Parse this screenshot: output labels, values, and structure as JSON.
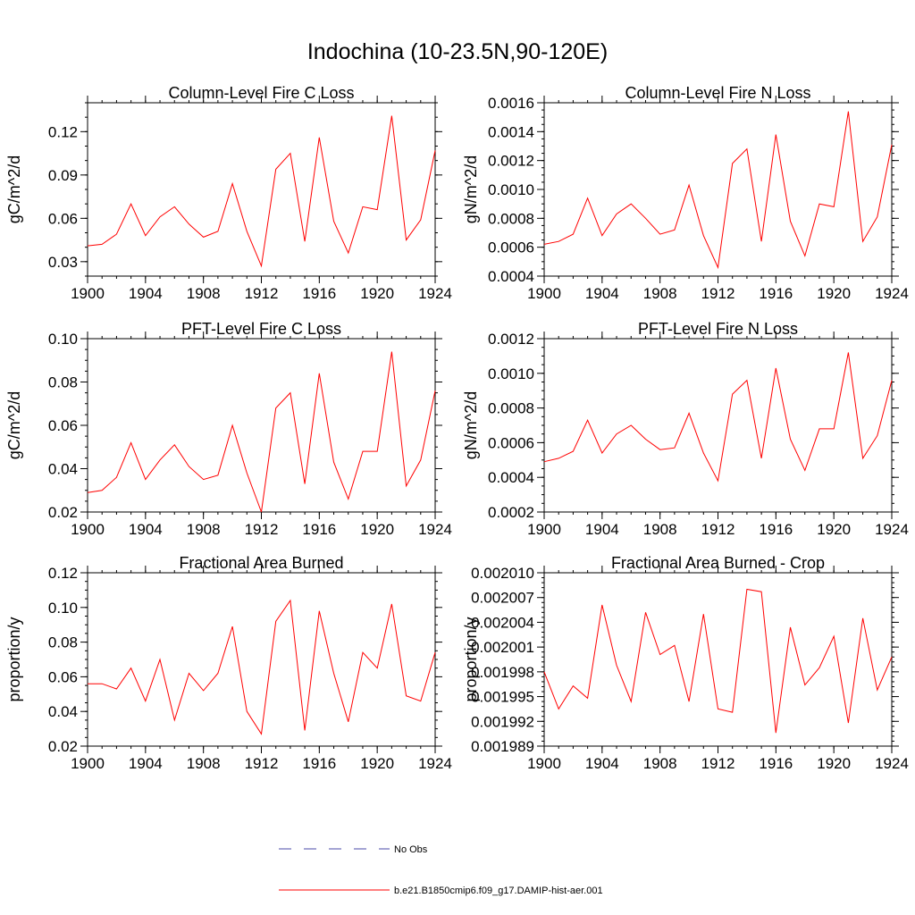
{
  "figure": {
    "title": "Indochina (10-23.5N,90-120E)"
  },
  "legend": {
    "entries": [
      {
        "label": "No Obs",
        "color": "#4a4aa8",
        "style": "dashed"
      },
      {
        "label": "b.e21.B1850cmip6.f09_g17.DAMIP-hist-aer.001",
        "color": "#ff0000",
        "style": "solid"
      }
    ]
  },
  "chart_data": [
    {
      "type": "line",
      "title": "Column-Level Fire C Loss",
      "ylabel": "gC/m^2/d",
      "xlim": [
        1900,
        1924
      ],
      "ylim": [
        0.02,
        0.14
      ],
      "xticks": [
        "1900",
        "1904",
        "1908",
        "1912",
        "1916",
        "1920",
        "1924"
      ],
      "yticks": [
        "0.03",
        "0.06",
        "0.09",
        "0.12"
      ],
      "ytick_values": [
        0.03,
        0.06,
        0.09,
        0.12
      ],
      "ymin_minor": 0.02,
      "ymax_minor": 0.14,
      "yminor_step": 0.01,
      "x": [
        1900,
        1901,
        1902,
        1903,
        1904,
        1905,
        1906,
        1907,
        1908,
        1909,
        1910,
        1911,
        1912,
        1913,
        1914,
        1915,
        1916,
        1917,
        1918,
        1919,
        1920,
        1921,
        1922,
        1923,
        1924
      ],
      "series": [
        {
          "color": "#ff0000",
          "values": [
            0.041,
            0.042,
            0.049,
            0.07,
            0.048,
            0.061,
            0.068,
            0.056,
            0.047,
            0.051,
            0.084,
            0.051,
            0.027,
            0.094,
            0.105,
            0.044,
            0.116,
            0.058,
            0.036,
            0.068,
            0.066,
            0.131,
            0.045,
            0.059,
            0.107
          ]
        }
      ]
    },
    {
      "type": "line",
      "title": "Column-Level Fire N Loss",
      "ylabel": "gN/m^2/d",
      "xlim": [
        1900,
        1924
      ],
      "ylim": [
        0.0004,
        0.0016
      ],
      "xticks": [
        "1900",
        "1904",
        "1908",
        "1912",
        "1916",
        "1920",
        "1924"
      ],
      "yticks": [
        "0.0004",
        "0.0006",
        "0.0008",
        "0.0010",
        "0.0012",
        "0.0014",
        "0.0016"
      ],
      "ytick_values": [
        0.0004,
        0.0006,
        0.0008,
        0.001,
        0.0012,
        0.0014,
        0.0016
      ],
      "ymin_minor": 0.0004,
      "ymax_minor": 0.0016,
      "yminor_step": 5e-05,
      "x": [
        1900,
        1901,
        1902,
        1903,
        1904,
        1905,
        1906,
        1907,
        1908,
        1909,
        1910,
        1911,
        1912,
        1913,
        1914,
        1915,
        1916,
        1917,
        1918,
        1919,
        1920,
        1921,
        1922,
        1923,
        1924
      ],
      "series": [
        {
          "color": "#ff0000",
          "values": [
            0.00062,
            0.00064,
            0.00069,
            0.00094,
            0.00068,
            0.00083,
            0.0009,
            0.0008,
            0.00069,
            0.00072,
            0.00103,
            0.00068,
            0.00046,
            0.00118,
            0.00128,
            0.00064,
            0.00138,
            0.00078,
            0.00054,
            0.0009,
            0.00088,
            0.00154,
            0.00064,
            0.00081,
            0.00131
          ]
        }
      ]
    },
    {
      "type": "line",
      "title": "PFT-Level Fire C Loss",
      "ylabel": "gC/m^2/d",
      "xlim": [
        1900,
        1924
      ],
      "ylim": [
        0.02,
        0.1
      ],
      "xticks": [
        "1900",
        "1904",
        "1908",
        "1912",
        "1916",
        "1920",
        "1924"
      ],
      "yticks": [
        "0.02",
        "0.04",
        "0.06",
        "0.08",
        "0.10"
      ],
      "ytick_values": [
        0.02,
        0.04,
        0.06,
        0.08,
        0.1
      ],
      "ymin_minor": 0.02,
      "ymax_minor": 0.1,
      "yminor_step": 0.005,
      "x": [
        1900,
        1901,
        1902,
        1903,
        1904,
        1905,
        1906,
        1907,
        1908,
        1909,
        1910,
        1911,
        1912,
        1913,
        1914,
        1915,
        1916,
        1917,
        1918,
        1919,
        1920,
        1921,
        1922,
        1923,
        1924
      ],
      "series": [
        {
          "color": "#ff0000",
          "values": [
            0.029,
            0.03,
            0.036,
            0.052,
            0.035,
            0.044,
            0.051,
            0.041,
            0.035,
            0.037,
            0.06,
            0.038,
            0.02,
            0.068,
            0.075,
            0.033,
            0.084,
            0.043,
            0.026,
            0.048,
            0.048,
            0.094,
            0.032,
            0.044,
            0.076
          ]
        }
      ]
    },
    {
      "type": "line",
      "title": "PFT-Level Fire N Loss",
      "ylabel": "gN/m^2/d",
      "xlim": [
        1900,
        1924
      ],
      "ylim": [
        0.0002,
        0.0012
      ],
      "xticks": [
        "1900",
        "1904",
        "1908",
        "1912",
        "1916",
        "1920",
        "1924"
      ],
      "yticks": [
        "0.0002",
        "0.0004",
        "0.0006",
        "0.0008",
        "0.0010",
        "0.0012"
      ],
      "ytick_values": [
        0.0002,
        0.0004,
        0.0006,
        0.0008,
        0.001,
        0.0012
      ],
      "ymin_minor": 0.0002,
      "ymax_minor": 0.0012,
      "yminor_step": 5e-05,
      "x": [
        1900,
        1901,
        1902,
        1903,
        1904,
        1905,
        1906,
        1907,
        1908,
        1909,
        1910,
        1911,
        1912,
        1913,
        1914,
        1915,
        1916,
        1917,
        1918,
        1919,
        1920,
        1921,
        1922,
        1923,
        1924
      ],
      "series": [
        {
          "color": "#ff0000",
          "values": [
            0.00049,
            0.00051,
            0.00055,
            0.00073,
            0.00054,
            0.00065,
            0.0007,
            0.00062,
            0.00056,
            0.00057,
            0.00077,
            0.00054,
            0.00038,
            0.00088,
            0.00096,
            0.00051,
            0.00103,
            0.00062,
            0.00044,
            0.00068,
            0.00068,
            0.00112,
            0.00051,
            0.00064,
            0.00096
          ]
        }
      ]
    },
    {
      "type": "line",
      "title": "Fractional Area Burned",
      "ylabel": "proportion/y",
      "xlim": [
        1900,
        1924
      ],
      "ylim": [
        0.02,
        0.12
      ],
      "xticks": [
        "1900",
        "1904",
        "1908",
        "1912",
        "1916",
        "1920",
        "1924"
      ],
      "yticks": [
        "0.02",
        "0.04",
        "0.06",
        "0.08",
        "0.10",
        "0.12"
      ],
      "ytick_values": [
        0.02,
        0.04,
        0.06,
        0.08,
        0.1,
        0.12
      ],
      "ymin_minor": 0.02,
      "ymax_minor": 0.12,
      "yminor_step": 0.005,
      "x": [
        1900,
        1901,
        1902,
        1903,
        1904,
        1905,
        1906,
        1907,
        1908,
        1909,
        1910,
        1911,
        1912,
        1913,
        1914,
        1915,
        1916,
        1917,
        1918,
        1919,
        1920,
        1921,
        1922,
        1923,
        1924
      ],
      "series": [
        {
          "color": "#ff0000",
          "values": [
            0.056,
            0.056,
            0.053,
            0.065,
            0.046,
            0.07,
            0.035,
            0.062,
            0.052,
            0.062,
            0.089,
            0.04,
            0.027,
            0.092,
            0.104,
            0.029,
            0.098,
            0.062,
            0.034,
            0.074,
            0.065,
            0.102,
            0.049,
            0.046,
            0.074
          ]
        }
      ]
    },
    {
      "type": "line",
      "title": "Fractional Area Burned - Crop",
      "ylabel": "proportion/y",
      "xlim": [
        1900,
        1924
      ],
      "ylim": [
        0.001989,
        0.00201
      ],
      "xticks": [
        "1900",
        "1904",
        "1908",
        "1912",
        "1916",
        "1920",
        "1924"
      ],
      "yticks": [
        "0.001989",
        "0.001992",
        "0.001995",
        "0.001998",
        "0.002001",
        "0.002004",
        "0.002007",
        "0.002010"
      ],
      "ytick_values": [
        0.001989,
        0.001992,
        0.001995,
        0.001998,
        0.002001,
        0.002004,
        0.002007,
        0.00201
      ],
      "ymin_minor": 0.001989,
      "ymax_minor": 0.00201,
      "yminor_step": 6e-07,
      "x": [
        1900,
        1901,
        1902,
        1903,
        1904,
        1905,
        1906,
        1907,
        1908,
        1909,
        1910,
        1911,
        1912,
        1913,
        1914,
        1915,
        1916,
        1917,
        1918,
        1919,
        1920,
        1921,
        1922,
        1923,
        1924
      ],
      "series": [
        {
          "color": "#ff0000",
          "values": [
            0.001998,
            0.0019935,
            0.0019963,
            0.0019948,
            0.0020061,
            0.0019988,
            0.0019944,
            0.0020052,
            0.0020001,
            0.0020012,
            0.0019944,
            0.002005,
            0.0019935,
            0.0019931,
            0.002008,
            0.0020077,
            0.0019906,
            0.0020034,
            0.0019964,
            0.0019985,
            0.0020023,
            0.0019918,
            0.0020045,
            0.0019958,
            0.0019998
          ]
        }
      ]
    }
  ]
}
